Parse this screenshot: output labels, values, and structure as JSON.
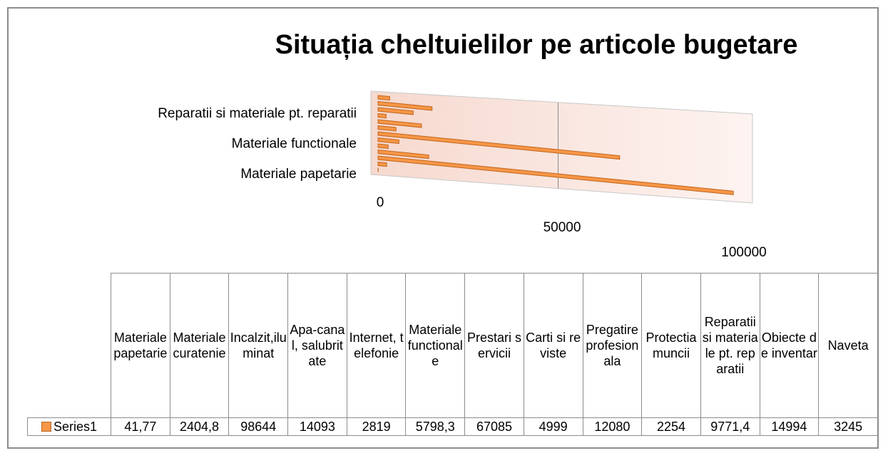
{
  "chart_data": {
    "type": "bar",
    "title": "Situația cheltuielilor pe articole bugetare",
    "categories": [
      "Materiale papetarie",
      "Materiale curatenie",
      "Incalzit,iluminat",
      "Apa-canal, salubritate",
      "Internet, telefonie",
      "Materiale functionale",
      "Prestari servicii",
      "Carti si reviste",
      "Pregatire profesionala",
      "Protectia muncii",
      "Reparatii si materiale pt. reparatii",
      "Obiecte de inventar",
      "Naveta"
    ],
    "series": [
      {
        "name": "Series1",
        "color": "#f79646",
        "values": [
          41.77,
          2404.8,
          98644,
          14093,
          2819,
          5798.3,
          67085,
          4999,
          12080,
          2254,
          9771.4,
          14994,
          3245
        ],
        "value_labels": [
          "41,77",
          "2404,8",
          "98644",
          "14093",
          "2819",
          "5798,3",
          "67085",
          "4999",
          "12080",
          "2254",
          "9771,4",
          "14994",
          "3245"
        ]
      }
    ],
    "xlim": [
      0,
      100000
    ],
    "xticks": [
      0,
      50000,
      100000
    ],
    "grid": true
  }
}
